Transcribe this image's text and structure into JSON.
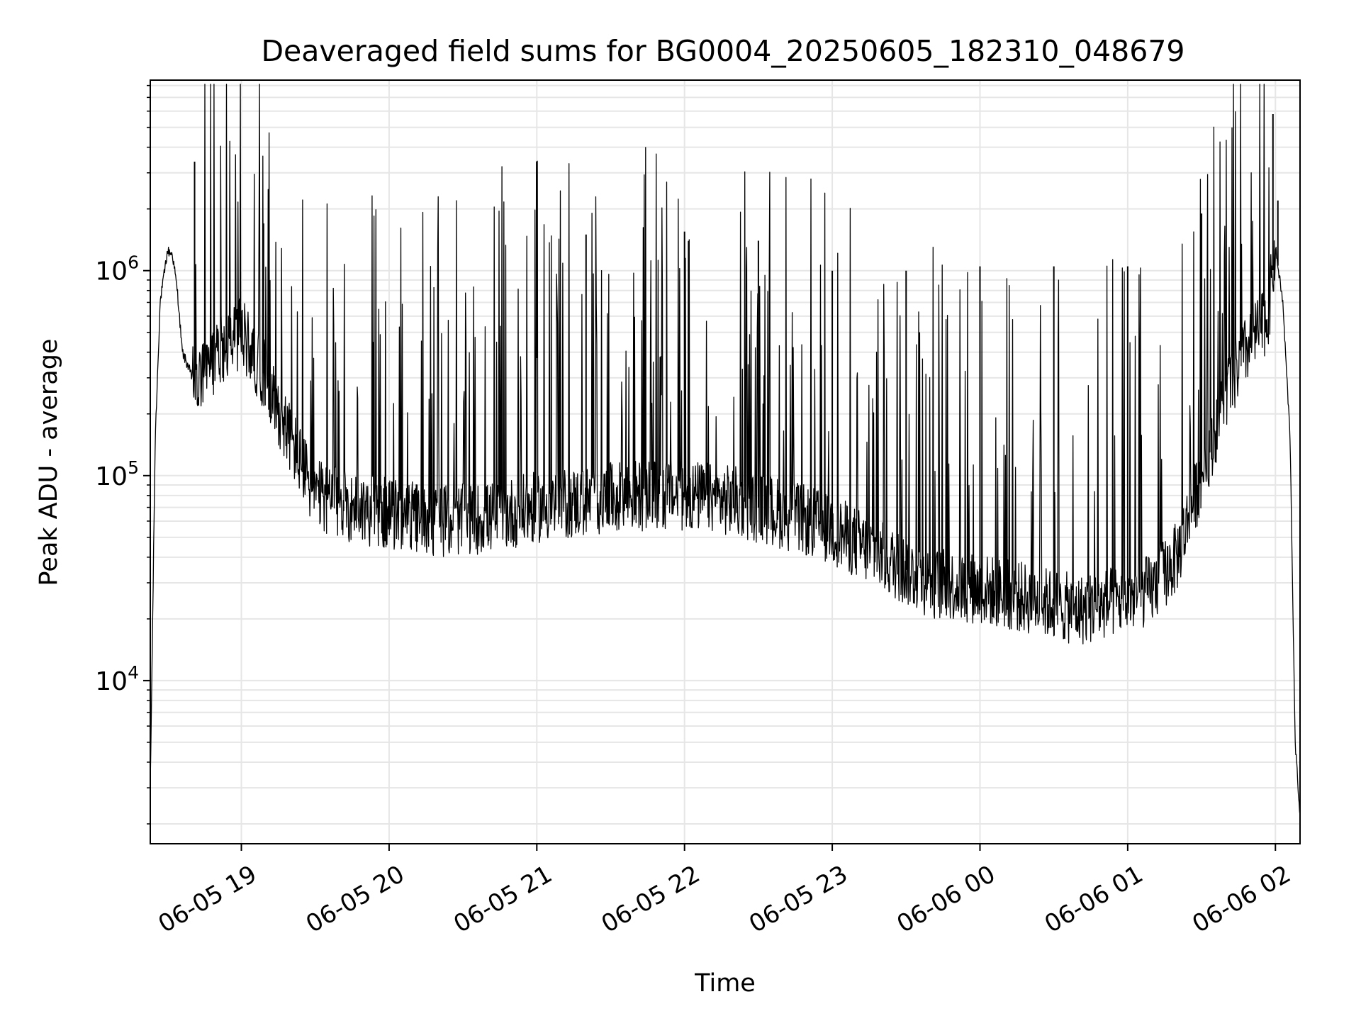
{
  "chart_data": {
    "type": "line",
    "title": "Deaveraged field sums for BG0004_20250605_182310_048679",
    "xlabel": "Time",
    "ylabel": "Peak ADU - average",
    "yscale": "log",
    "xlim": [
      "2025-06-05 18:23",
      "2025-06-06 02:10"
    ],
    "ylim": [
      1600,
      8500000
    ],
    "grid": true,
    "line_color": "#000000",
    "x_ticks": [
      {
        "value": "2025-06-05 19:00",
        "label": "06-05 19"
      },
      {
        "value": "2025-06-05 20:00",
        "label": "06-05 20"
      },
      {
        "value": "2025-06-05 21:00",
        "label": "06-05 21"
      },
      {
        "value": "2025-06-05 22:00",
        "label": "06-05 22"
      },
      {
        "value": "2025-06-05 23:00",
        "label": "06-05 23"
      },
      {
        "value": "2025-06-06 00:00",
        "label": "06-06 00"
      },
      {
        "value": "2025-06-06 01:00",
        "label": "06-06 01"
      },
      {
        "value": "2025-06-06 02:00",
        "label": "06-06 02"
      }
    ],
    "y_ticks": [
      {
        "value": 10000,
        "base": "10",
        "exp": "4"
      },
      {
        "value": 100000,
        "base": "10",
        "exp": "5"
      },
      {
        "value": 1000000,
        "base": "10",
        "exp": "6"
      }
    ],
    "series": [
      {
        "x": [
          "2025-06-05 18:23",
          "2025-06-05 18:25",
          "2025-06-05 18:27",
          "2025-06-05 18:30",
          "2025-06-05 18:32",
          "2025-06-05 18:34",
          "2025-06-05 18:36",
          "2025-06-05 18:38",
          "2025-06-05 18:40",
          "2025-06-05 18:42",
          "2025-06-05 18:45",
          "2025-06-05 18:50",
          "2025-06-05 18:55",
          "2025-06-05 19:00",
          "2025-06-05 19:10",
          "2025-06-05 19:20",
          "2025-06-05 19:30",
          "2025-06-05 19:45",
          "2025-06-05 20:00",
          "2025-06-05 20:20",
          "2025-06-05 20:40",
          "2025-06-05 21:00",
          "2025-06-05 21:20",
          "2025-06-05 21:40",
          "2025-06-05 22:00",
          "2025-06-05 22:20",
          "2025-06-05 22:40",
          "2025-06-05 23:00",
          "2025-06-05 23:20",
          "2025-06-05 23:40",
          "2025-06-06 00:00",
          "2025-06-06 00:20",
          "2025-06-06 00:40",
          "2025-06-06 01:00",
          "2025-06-06 01:10",
          "2025-06-06 01:20",
          "2025-06-06 01:30",
          "2025-06-06 01:40",
          "2025-06-06 01:50",
          "2025-06-06 01:57",
          "2025-06-06 02:00",
          "2025-06-06 02:03",
          "2025-06-06 02:06",
          "2025-06-06 02:08",
          "2025-06-06 02:10"
        ],
        "values": [
          3000,
          150000,
          700000,
          1250000,
          1200000,
          800000,
          400000,
          350000,
          300000,
          280000,
          300000,
          400000,
          450000,
          500000,
          300000,
          150000,
          80000,
          70000,
          65000,
          60000,
          62000,
          70000,
          75000,
          80000,
          80000,
          75000,
          65000,
          55000,
          40000,
          30000,
          28000,
          25000,
          22000,
          25000,
          28000,
          40000,
          100000,
          250000,
          450000,
          600000,
          1300000,
          700000,
          150000,
          5000,
          2200
        ],
        "peaks_x": [
          "2025-06-05 18:41",
          "2025-06-05 19:09",
          "2025-06-05 21:20",
          "2025-06-05 22:00",
          "2025-06-05 22:30",
          "2025-06-05 23:00",
          "2025-06-05 23:30",
          "2025-06-06 00:00",
          "2025-06-06 00:30",
          "2025-06-06 01:00",
          "2025-06-06 01:30",
          "2025-06-06 01:59",
          "2025-06-06 02:01"
        ],
        "peaks_values": [
          3400000,
          1700000,
          1500000,
          1550000,
          1400000,
          1000000,
          1000000,
          1050000,
          1050000,
          1050000,
          1900000,
          5800000,
          2200000
        ]
      }
    ]
  }
}
